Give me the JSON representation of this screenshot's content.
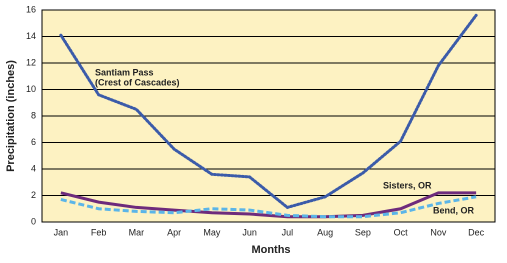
{
  "chart_data": {
    "type": "line",
    "x_label": "Months",
    "y_label": "Precipitation (inches)",
    "categories": [
      "Jan",
      "Feb",
      "Mar",
      "Apr",
      "May",
      "Jun",
      "Jul",
      "Aug",
      "Sep",
      "Oct",
      "Nov",
      "Dec"
    ],
    "series": [
      {
        "name": "Santiam Pass",
        "color": "#3b5ba9",
        "style": "dotted",
        "values": [
          14.1,
          9.6,
          8.5,
          5.5,
          3.6,
          3.4,
          1.1,
          1.9,
          3.7,
          6.1,
          11.8,
          15.6
        ]
      },
      {
        "name": "Sisters, OR",
        "color": "#6e2b7c",
        "style": "solid",
        "values": [
          2.2,
          1.5,
          1.1,
          0.9,
          0.7,
          0.6,
          0.4,
          0.4,
          0.5,
          1.0,
          2.2,
          2.2
        ]
      },
      {
        "name": "Bend, OR",
        "color": "#5bb5e8",
        "style": "dashed",
        "values": [
          1.7,
          1.0,
          0.8,
          0.7,
          1.0,
          0.9,
          0.5,
          0.4,
          0.4,
          0.7,
          1.4,
          1.9
        ]
      }
    ],
    "annotations": [
      "(Crest of Cascades)"
    ],
    "ylim": [
      0,
      16
    ],
    "yticks": [
      0,
      2,
      4,
      6,
      8,
      10,
      12,
      14,
      16
    ],
    "grid": true,
    "background": "#fdf2c2"
  }
}
